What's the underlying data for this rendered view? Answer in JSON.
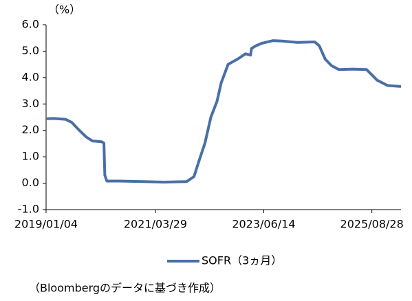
{
  "chart_data": {
    "type": "line",
    "y_unit_label": "（%）",
    "footnote": "（Bloombergのデータに基づき作成）",
    "x": [
      "2019/01/04",
      "2019/03/01",
      "2019/05/29",
      "2019/07/15",
      "2019/09/09",
      "2019/10/30",
      "2019/12/15",
      "2020/02/21",
      "2020/03/10",
      "2020/03/17",
      "2020/04/01",
      "2020/07/01",
      "2021/01/01",
      "2021/06/01",
      "2021/11/16",
      "2022/01/10",
      "2022/02/27",
      "2022/04/01",
      "2022/05/16",
      "2022/07/01",
      "2022/08/01",
      "2022/09/22",
      "2022/12/01",
      "2023/01/29",
      "2023/03/08",
      "2023/03/15",
      "2023/04/16",
      "2023/06/01",
      "2023/08/23",
      "2023/11/01",
      "2024/02/20",
      "2024/06/28",
      "2024/08/01",
      "2024/09/14",
      "2024/11/01",
      "2024/12/26",
      "2025/04/08",
      "2025/07/20",
      "2025/10/06",
      "2025/12/22",
      "2026/04/02"
    ],
    "series": [
      {
        "name": "SOFR（3ヵ月）",
        "color": "#4a6fa5",
        "values": [
          2.44,
          2.45,
          2.42,
          2.3,
          2.0,
          1.75,
          1.6,
          1.57,
          1.52,
          0.3,
          0.08,
          0.08,
          0.06,
          0.04,
          0.06,
          0.25,
          1.0,
          1.5,
          2.5,
          3.1,
          3.8,
          4.5,
          4.7,
          4.9,
          4.85,
          5.1,
          5.2,
          5.3,
          5.4,
          5.38,
          5.33,
          5.35,
          5.2,
          4.7,
          4.45,
          4.3,
          4.32,
          4.3,
          3.9,
          3.7,
          3.66
        ]
      }
    ],
    "xlim": [
      "2019/01/04",
      "2026/04/02"
    ],
    "xticks": [
      "2019/01/04",
      "2021/03/29",
      "2023/06/14",
      "2025/08/28"
    ],
    "ylim": [
      -1,
      6
    ],
    "yticks": [
      {
        "value": -1,
        "label": "-1.0"
      },
      {
        "value": 0,
        "label": "0.0"
      },
      {
        "value": 1,
        "label": "1.0"
      },
      {
        "value": 2,
        "label": "2.0"
      },
      {
        "value": 3,
        "label": "3.0"
      },
      {
        "value": 4,
        "label": "4.0"
      },
      {
        "value": 5,
        "label": "5.0"
      },
      {
        "value": 6,
        "label": "6.0"
      }
    ],
    "grid": false,
    "legend": "bottom"
  }
}
